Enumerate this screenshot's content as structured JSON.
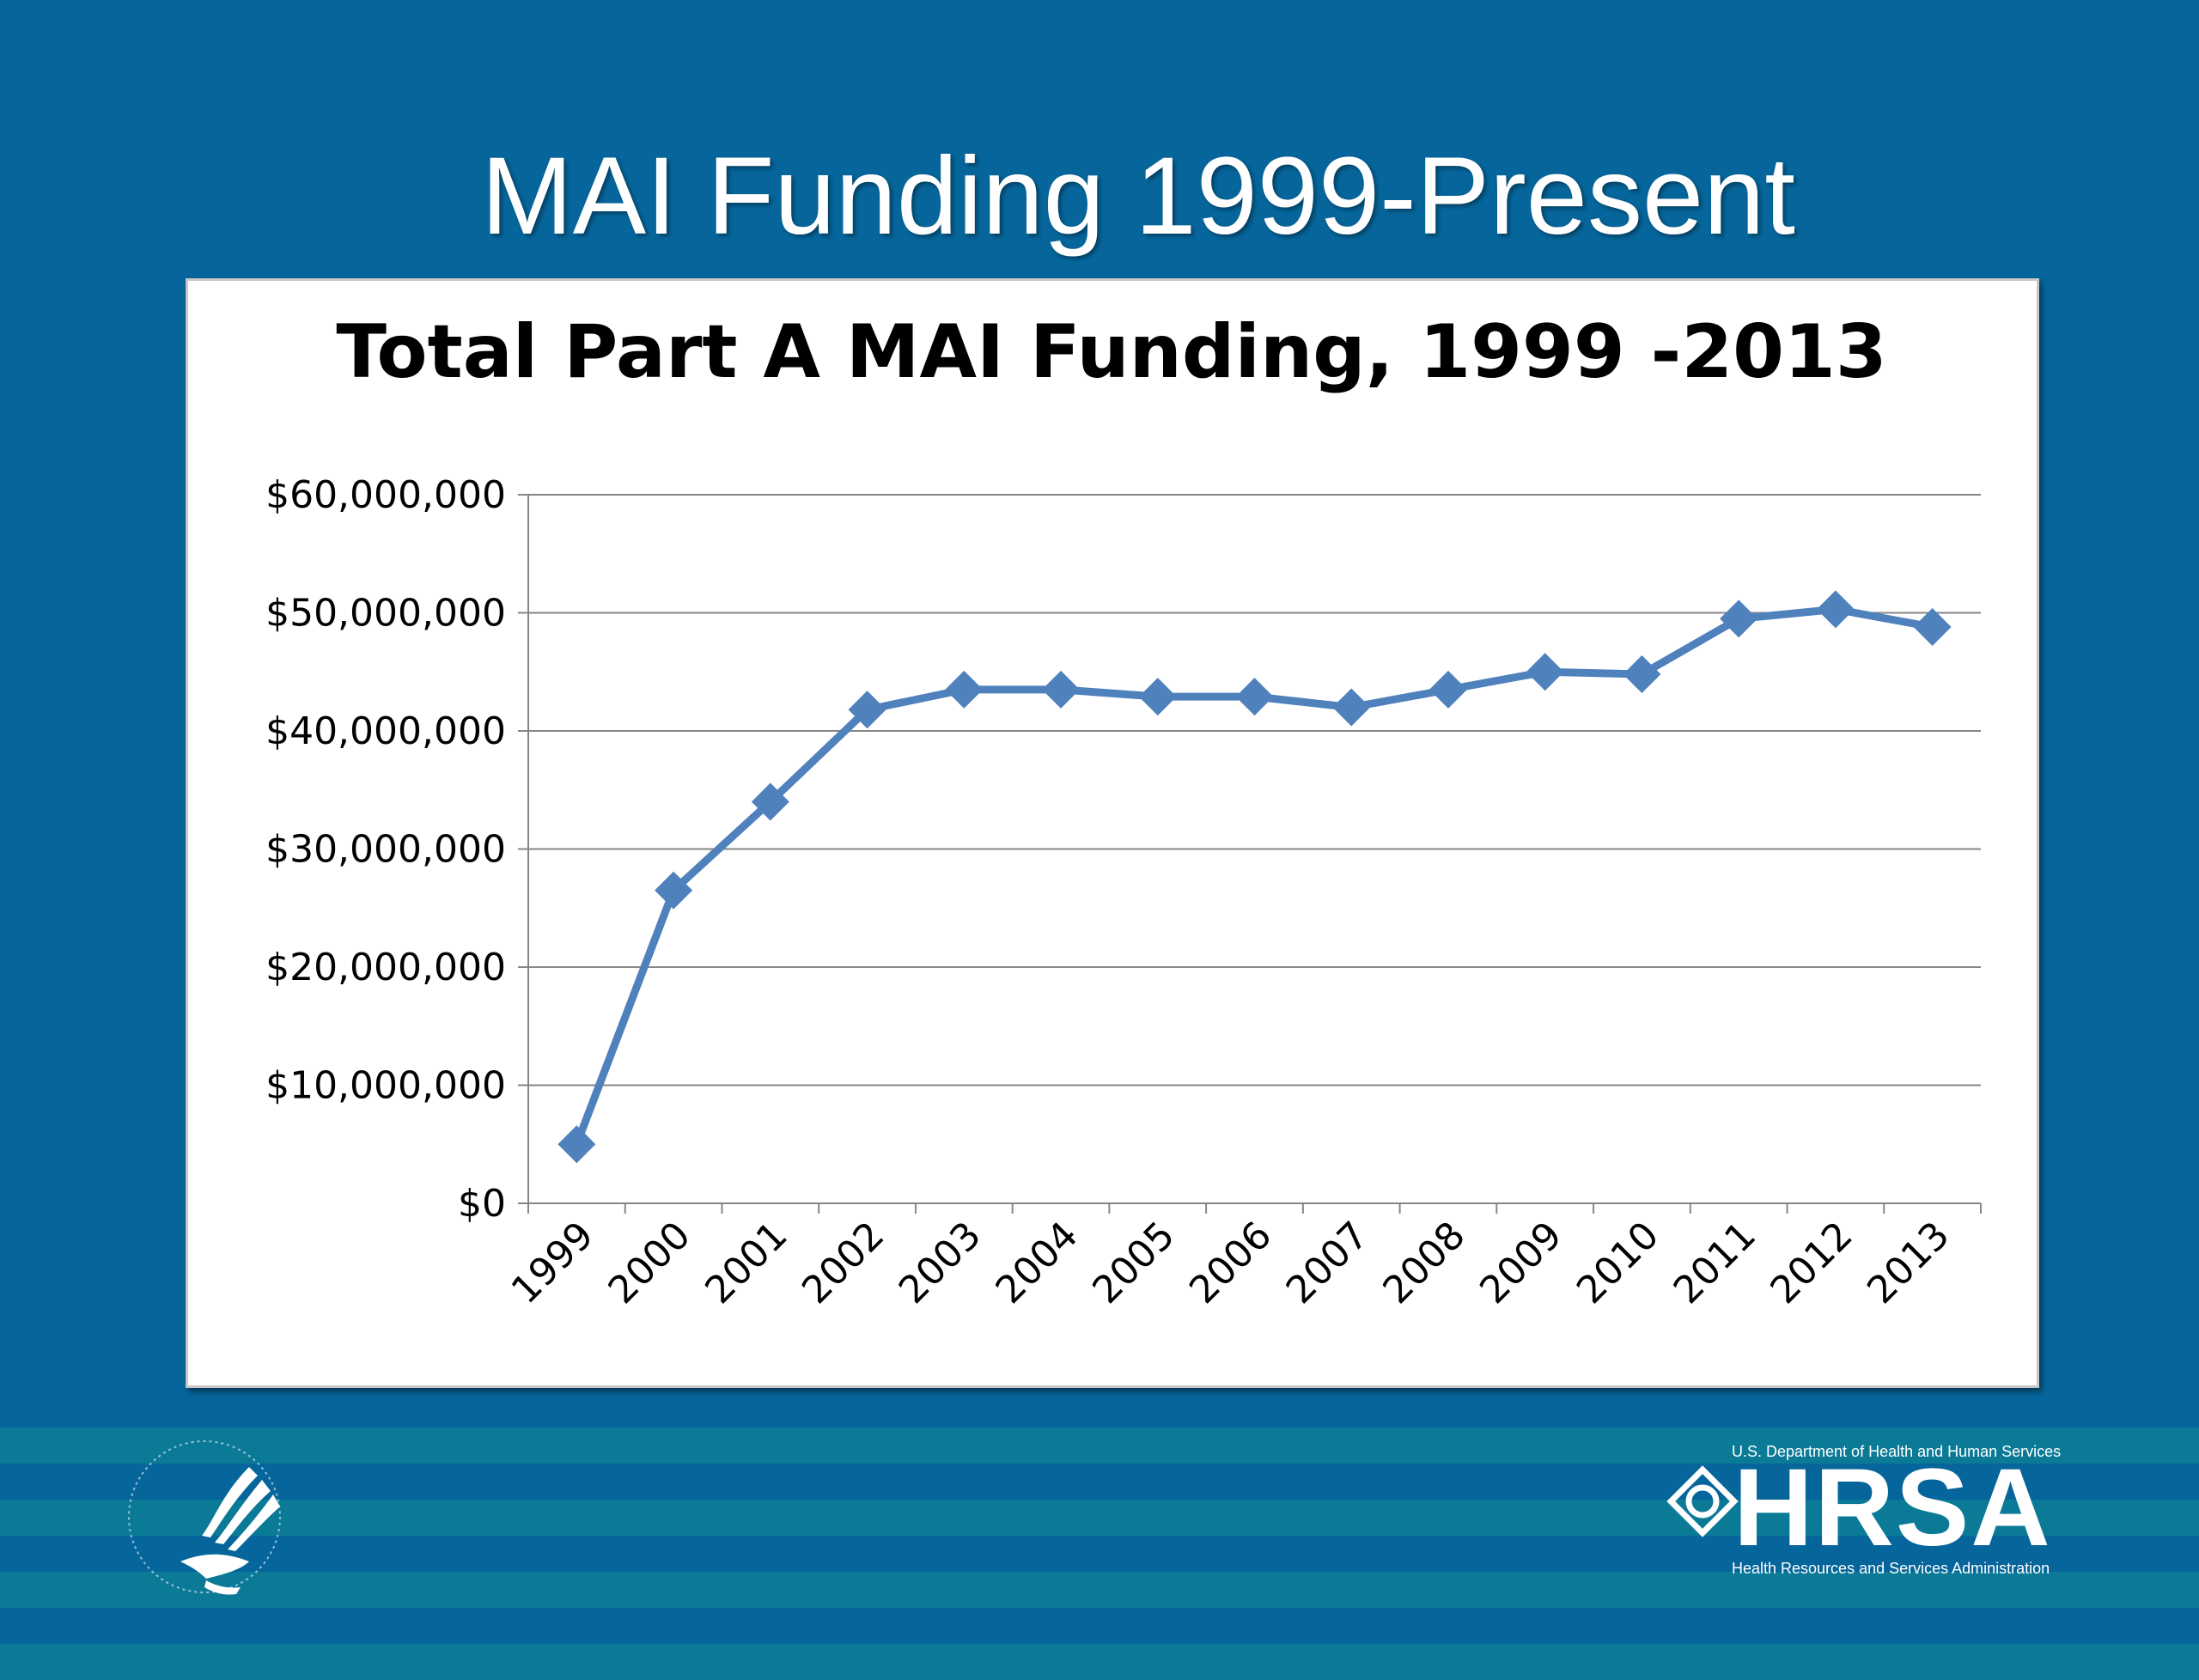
{
  "slide": {
    "title": "MAI Funding 1999-Present",
    "background_color": "#06659a"
  },
  "chart_data": {
    "type": "line",
    "title": "Total Part A MAI Funding, 1999 -2013",
    "xlabel": "",
    "ylabel": "",
    "categories": [
      "1999",
      "2000",
      "2001",
      "2002",
      "2003",
      "2004",
      "2005",
      "2006",
      "2007",
      "2008",
      "2009",
      "2010",
      "2011",
      "2012",
      "2013"
    ],
    "series": [
      {
        "values": [
          5000000,
          26500000,
          34000000,
          41800000,
          43500000,
          43500000,
          42900000,
          42900000,
          42000000,
          43500000,
          45000000,
          44800000,
          49500000,
          50300000,
          48800000
        ],
        "color": "#4f81bd",
        "marker": "diamond"
      }
    ],
    "ylim": [
      0,
      60000000
    ],
    "yticks": [
      0,
      10000000,
      20000000,
      30000000,
      40000000,
      50000000,
      60000000
    ],
    "ytick_labels": [
      "$0",
      "$10,000,000",
      "$20,000,000",
      "$30,000,000",
      "$40,000,000",
      "$50,000,000",
      "$60,000,000"
    ],
    "grid": true,
    "legend": "none"
  },
  "footer": {
    "band_colors": [
      "#0b7a96",
      "#06659a"
    ],
    "seal_icon": "hhs-eagle-seal-icon",
    "hrsa": {
      "department": "U.S. Department of Health and Human Services",
      "acronym": "HRSA",
      "full_name": "Health Resources and Services Administration"
    }
  }
}
